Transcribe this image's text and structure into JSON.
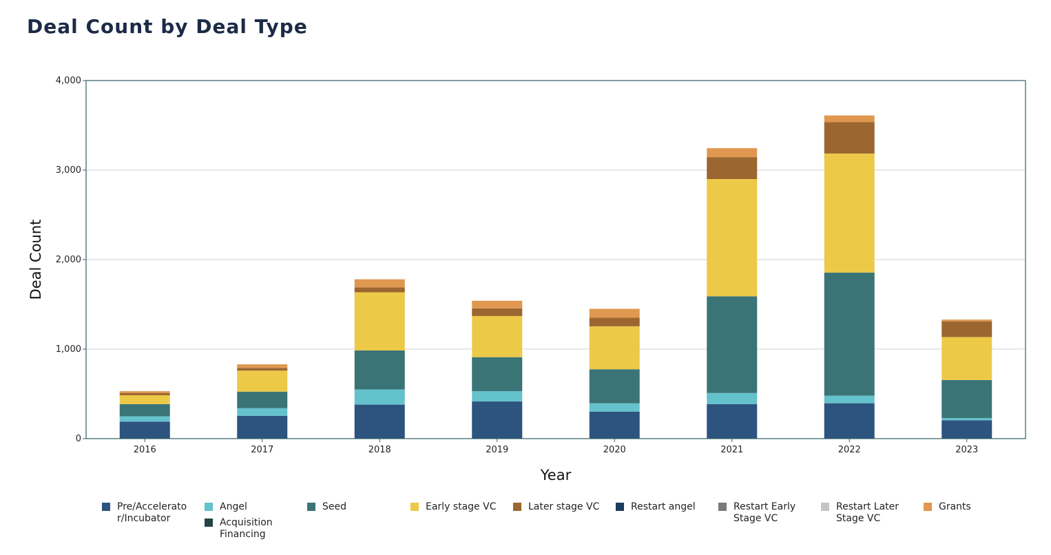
{
  "chart_data": {
    "type": "bar",
    "stacked": true,
    "title": "Deal Count by Deal Type",
    "xlabel": "Year",
    "ylabel": "Deal Count",
    "ylim": [
      0,
      4000
    ],
    "yticks": [
      0,
      1000,
      2000,
      3000,
      4000
    ],
    "ytick_labels": [
      "0",
      "1,000",
      "2,000",
      "3,000",
      "4,000"
    ],
    "grid": true,
    "legend_position": "bottom",
    "categories": [
      "2016",
      "2017",
      "2018",
      "2019",
      "2020",
      "2021",
      "2022",
      "2023"
    ],
    "series": [
      {
        "name": "Pre/Accelerator/Incubator",
        "label_lines": [
          "Pre/Accelerato",
          "r/Incubator"
        ],
        "color": "#2d537f",
        "values": [
          190,
          255,
          380,
          415,
          300,
          385,
          395,
          205
        ]
      },
      {
        "name": "Angel",
        "label_lines": [
          "Angel"
        ],
        "color": "#64c2cc",
        "values": [
          60,
          85,
          170,
          115,
          95,
          125,
          85,
          25
        ]
      },
      {
        "name": "Acquisition Financing",
        "label_lines": [
          "Acquisition",
          "Financing"
        ],
        "color": "#234548",
        "values": [
          0,
          0,
          0,
          0,
          0,
          0,
          0,
          0
        ]
      },
      {
        "name": "Seed",
        "label_lines": [
          "Seed"
        ],
        "color": "#3b7477",
        "values": [
          135,
          185,
          435,
          380,
          380,
          1080,
          1375,
          425
        ]
      },
      {
        "name": "Early stage VC",
        "label_lines": [
          "Early stage VC"
        ],
        "color": "#edc948",
        "values": [
          100,
          235,
          650,
          460,
          480,
          1310,
          1330,
          480
        ]
      },
      {
        "name": "Later stage VC",
        "label_lines": [
          "Later stage VC"
        ],
        "color": "#9b6630",
        "values": [
          25,
          30,
          55,
          85,
          95,
          245,
          350,
          175
        ]
      },
      {
        "name": "Restart angel",
        "label_lines": [
          "Restart angel"
        ],
        "color": "#1e3a5f",
        "values": [
          0,
          0,
          0,
          0,
          0,
          0,
          0,
          0
        ]
      },
      {
        "name": "Restart Early Stage VC",
        "label_lines": [
          "Restart Early",
          "Stage VC"
        ],
        "color": "#7a7a7a",
        "values": [
          0,
          0,
          0,
          0,
          0,
          0,
          0,
          0
        ]
      },
      {
        "name": "Restart Later Stage VC",
        "label_lines": [
          "Restart Later",
          "Stage VC"
        ],
        "color": "#c4c4c4",
        "values": [
          0,
          0,
          0,
          0,
          0,
          0,
          0,
          0
        ]
      },
      {
        "name": "Grants",
        "label_lines": [
          "Grants"
        ],
        "color": "#e0974f",
        "values": [
          20,
          40,
          90,
          85,
          100,
          100,
          75,
          20
        ]
      }
    ]
  }
}
